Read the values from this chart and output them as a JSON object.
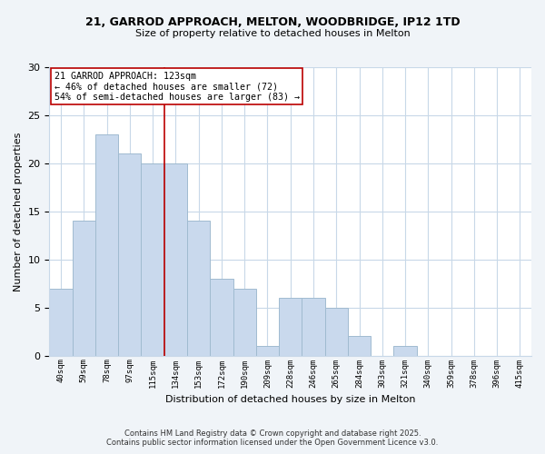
{
  "title": "21, GARROD APPROACH, MELTON, WOODBRIDGE, IP12 1TD",
  "subtitle": "Size of property relative to detached houses in Melton",
  "xlabel": "Distribution of detached houses by size in Melton",
  "ylabel": "Number of detached properties",
  "bar_labels": [
    "40sqm",
    "59sqm",
    "78sqm",
    "97sqm",
    "115sqm",
    "134sqm",
    "153sqm",
    "172sqm",
    "190sqm",
    "209sqm",
    "228sqm",
    "246sqm",
    "265sqm",
    "284sqm",
    "303sqm",
    "321sqm",
    "340sqm",
    "359sqm",
    "378sqm",
    "396sqm",
    "415sqm"
  ],
  "bar_values": [
    7,
    14,
    23,
    21,
    20,
    20,
    14,
    8,
    7,
    1,
    6,
    6,
    5,
    2,
    0,
    1,
    0,
    0,
    0,
    0,
    0
  ],
  "bar_color": "#c9d9ed",
  "bar_edge_color": "#a0bbd0",
  "vline_x": 4.5,
  "vline_color": "#bb0000",
  "annotation_title": "21 GARROD APPROACH: 123sqm",
  "annotation_line2": "← 46% of detached houses are smaller (72)",
  "annotation_line3": "54% of semi-detached houses are larger (83) →",
  "ylim": [
    0,
    30
  ],
  "yticks": [
    0,
    5,
    10,
    15,
    20,
    25,
    30
  ],
  "footer_line1": "Contains HM Land Registry data © Crown copyright and database right 2025.",
  "footer_line2": "Contains public sector information licensed under the Open Government Licence v3.0.",
  "bg_color": "#f0f4f8",
  "plot_bg_color": "#ffffff",
  "grid_color": "#c8d8e8"
}
